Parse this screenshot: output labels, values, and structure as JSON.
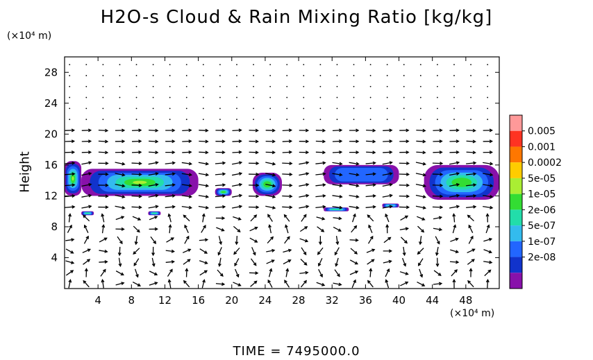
{
  "chart_data": {
    "type": "heatmap",
    "title": "H2O-s Cloud & Rain Mixing Ratio [kg/kg]",
    "x_unit_label": "(×10⁴ m)",
    "y_unit_label": "(×10⁴ m)",
    "ylabel": "Height",
    "footer": "TIME  =  7495000.0",
    "xlim": [
      0,
      52
    ],
    "ylim": [
      0,
      30
    ],
    "xticks": [
      "4",
      "8",
      "12",
      "16",
      "20",
      "24",
      "28",
      "32",
      "36",
      "40",
      "44",
      "48"
    ],
    "xtick_values": [
      4,
      8,
      12,
      16,
      20,
      24,
      28,
      32,
      36,
      40,
      44,
      48
    ],
    "yticks": [
      "4",
      "8",
      "12",
      "16",
      "20",
      "24",
      "28"
    ],
    "ytick_values": [
      4,
      8,
      12,
      16,
      20,
      24,
      28
    ],
    "colorbar": {
      "labels": [
        "0.005",
        "0.001",
        "0.0002",
        "5e-05",
        "1e-05",
        "2e-06",
        "5e-07",
        "1e-07",
        "2e-08"
      ],
      "colors": [
        "#ff9999",
        "#ff3322",
        "#ff7700",
        "#ffcc00",
        "#aaee33",
        "#33dd33",
        "#22ddaa",
        "#33bbee",
        "#2266ff",
        "#1133cc",
        "#8811aa"
      ]
    },
    "cloud_regions": [
      {
        "x": [
          0,
          2
        ],
        "y": [
          12,
          16.5
        ],
        "max": "5e-05"
      },
      {
        "x": [
          2,
          16
        ],
        "y": [
          12,
          15.5
        ],
        "max": "5e-05"
      },
      {
        "x": [
          18,
          20
        ],
        "y": [
          12,
          13
        ],
        "max": "1e-05"
      },
      {
        "x": [
          22.5,
          26
        ],
        "y": [
          12,
          15
        ],
        "max": "1e-05"
      },
      {
        "x": [
          31,
          40
        ],
        "y": [
          13.5,
          16
        ],
        "max": "1e-07"
      },
      {
        "x": [
          43,
          52
        ],
        "y": [
          11.5,
          16
        ],
        "max": "1e-05"
      },
      {
        "x": [
          2,
          3.5
        ],
        "y": [
          9.5,
          10
        ],
        "max": "5e-05"
      },
      {
        "x": [
          10,
          11.5
        ],
        "y": [
          9.5,
          10
        ],
        "max": "5e-05"
      },
      {
        "x": [
          31,
          34
        ],
        "y": [
          10,
          10.5
        ],
        "max": "1e-05"
      },
      {
        "x": [
          38,
          40
        ],
        "y": [
          10.5,
          11
        ],
        "max": "5e-07"
      }
    ]
  }
}
